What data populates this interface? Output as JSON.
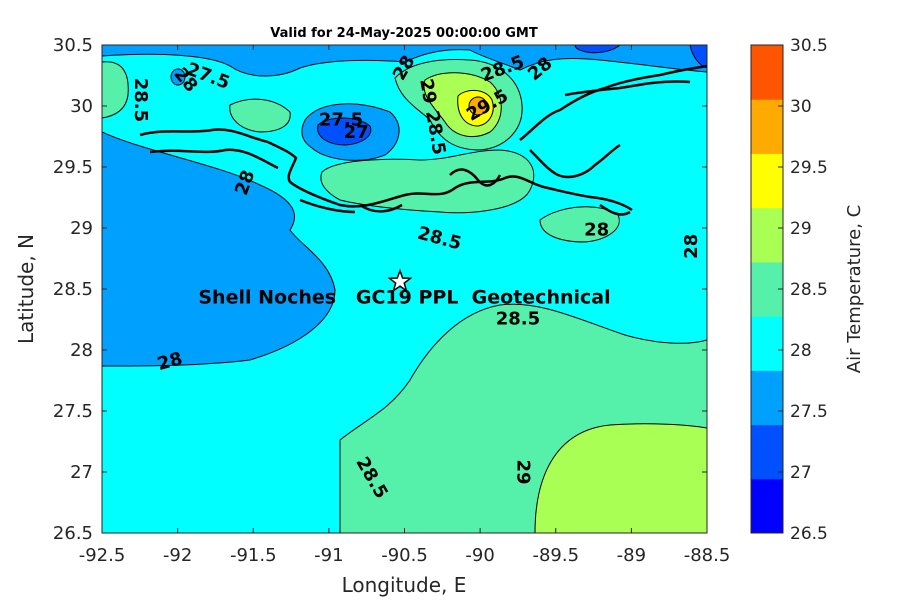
{
  "title": "Valid for 24-May-2025 00:00:00 GMT",
  "map": {
    "xlabel": "Longitude, E",
    "ylabel": "Latitude, N",
    "xlim": [
      -92.5,
      -88.5
    ],
    "ylim": [
      26.5,
      30.5
    ],
    "xticks": [
      "-92.5",
      "-92",
      "-91.5",
      "-91",
      "-90.5",
      "-90",
      "-89.5",
      "-89",
      "-88.5"
    ],
    "yticks": [
      "26.5",
      "27",
      "27.5",
      "28",
      "28.5",
      "29",
      "29.5",
      "30",
      "30.5"
    ]
  },
  "colorbar": {
    "label": "Air Temperature, C",
    "ticks": [
      "26.5",
      "27",
      "27.5",
      "28",
      "28.5",
      "29",
      "29.5",
      "30",
      "30.5"
    ],
    "colors": [
      "#0000ff",
      "#0050ff",
      "#00a0ff",
      "#00ffff",
      "#55f0aa",
      "#aaff55",
      "#ffff00",
      "#ffaa00",
      "#ff5500"
    ]
  },
  "contour_labels": [
    {
      "text": "28.5",
      "lon": -92.25,
      "lat": 30.05,
      "rot": 90
    },
    {
      "text": "28",
      "lon": -91.95,
      "lat": 30.21,
      "rot": 50
    },
    {
      "text": "27.5",
      "lon": -91.8,
      "lat": 30.24,
      "rot": 20
    },
    {
      "text": "28",
      "lon": -90.5,
      "lat": 30.31,
      "rot": -60
    },
    {
      "text": "27.5",
      "lon": -90.92,
      "lat": 29.88,
      "rot": 0
    },
    {
      "text": "27",
      "lon": -90.82,
      "lat": 29.78,
      "rot": 0
    },
    {
      "text": "29",
      "lon": -90.35,
      "lat": 30.12,
      "rot": 80
    },
    {
      "text": "28.5",
      "lon": -90.3,
      "lat": 29.78,
      "rot": 80
    },
    {
      "text": "29.5",
      "lon": -89.95,
      "lat": 30.0,
      "rot": -30
    },
    {
      "text": "28.5",
      "lon": -89.85,
      "lat": 30.3,
      "rot": -20
    },
    {
      "text": "28",
      "lon": -89.6,
      "lat": 30.3,
      "rot": -40
    },
    {
      "text": "28",
      "lon": -91.55,
      "lat": 29.37,
      "rot": -70
    },
    {
      "text": "28.5",
      "lon": -90.27,
      "lat": 28.91,
      "rot": 15
    },
    {
      "text": "28",
      "lon": -89.23,
      "lat": 28.98,
      "rot": 0
    },
    {
      "text": "28",
      "lon": -88.6,
      "lat": 28.85,
      "rot": -90
    },
    {
      "text": "28.5",
      "lon": -89.75,
      "lat": 28.25,
      "rot": 0
    },
    {
      "text": "28",
      "lon": -92.05,
      "lat": 27.9,
      "rot": -15
    },
    {
      "text": "28.5",
      "lon": -90.72,
      "lat": 26.95,
      "rot": 60
    },
    {
      "text": "29",
      "lon": -89.72,
      "lat": 27.0,
      "rot": 90
    }
  ],
  "site": {
    "label": "Shell Noches   GC19 PPL  Geotechnical",
    "lon": -90.53,
    "lat": 28.56,
    "label_lat": 28.43
  }
}
